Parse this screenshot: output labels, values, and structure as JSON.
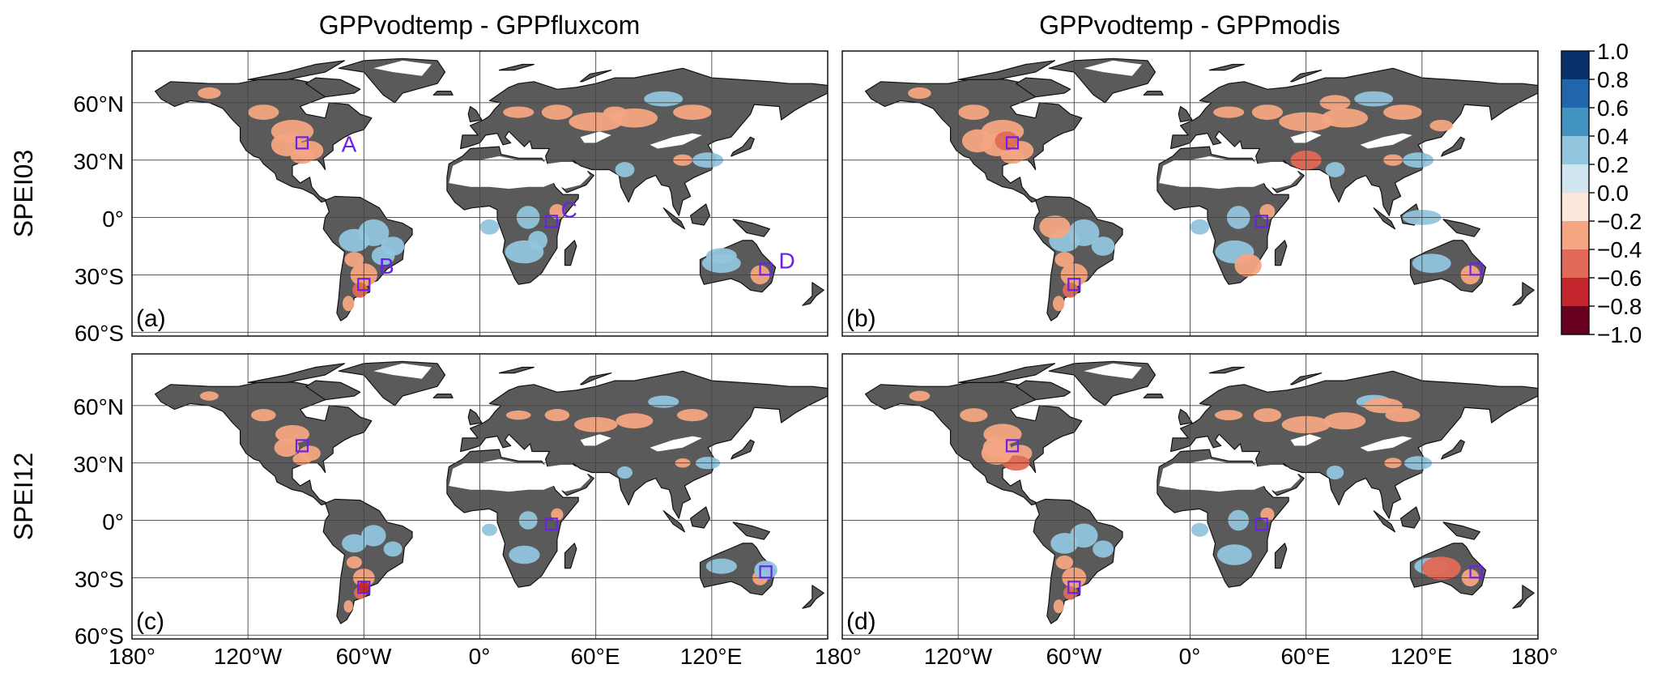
{
  "column_titles": [
    "GPPvodtemp - GPPfluxcom",
    "GPPvodtemp - GPPmodis"
  ],
  "row_labels": [
    "SPEI03",
    "SPEI12"
  ],
  "panels": [
    {
      "label": "(a)",
      "row": 0,
      "col": 0,
      "show_site_letters": true
    },
    {
      "label": "(b)",
      "row": 0,
      "col": 1,
      "show_site_letters": false
    },
    {
      "label": "(c)",
      "row": 1,
      "col": 0,
      "show_site_letters": false
    },
    {
      "label": "(d)",
      "row": 1,
      "col": 1,
      "show_site_letters": false
    }
  ],
  "lat_ticks": [
    {
      "value": 60,
      "label": "60°N"
    },
    {
      "value": 30,
      "label": "30°N"
    },
    {
      "value": 0,
      "label": "0°"
    },
    {
      "value": -30,
      "label": "30°S"
    },
    {
      "value": -60,
      "label": "60°S"
    }
  ],
  "lon_ticks": [
    {
      "value": -180,
      "label": "180°"
    },
    {
      "value": -120,
      "label": "120°W"
    },
    {
      "value": -60,
      "label": "60°W"
    },
    {
      "value": 0,
      "label": "0°"
    },
    {
      "value": 60,
      "label": "60°E"
    },
    {
      "value": 120,
      "label": "120°E"
    },
    {
      "value": 180,
      "label": "180°"
    }
  ],
  "extent": {
    "lon_min": -180,
    "lon_max": 180,
    "lat_min": -62,
    "lat_max": 87
  },
  "colorbar": {
    "ticks": [
      "1.0",
      "0.8",
      "0.6",
      "0.4",
      "0.2",
      "0.0",
      "−0.2",
      "−0.4",
      "−0.6",
      "−0.8",
      "−1.0"
    ],
    "colors_top_to_bottom": [
      "#08306b",
      "#2166ac",
      "#4393c3",
      "#92c5de",
      "#d1e5f0",
      "#fbe7dc",
      "#f4a582",
      "#e06a55",
      "#c3272d",
      "#67001f"
    ]
  },
  "land_color": "#5a5a5a",
  "arid_color": "#ffffff",
  "site_box_color": "#6a22e8",
  "sites": [
    {
      "id": "A",
      "lon": -92,
      "lat": 39
    },
    {
      "id": "B",
      "lon": -60,
      "lat": -35
    },
    {
      "id": "C",
      "lon": 37,
      "lat": -2
    },
    {
      "id": "D",
      "lon": 148,
      "lat": -27
    }
  ]
}
